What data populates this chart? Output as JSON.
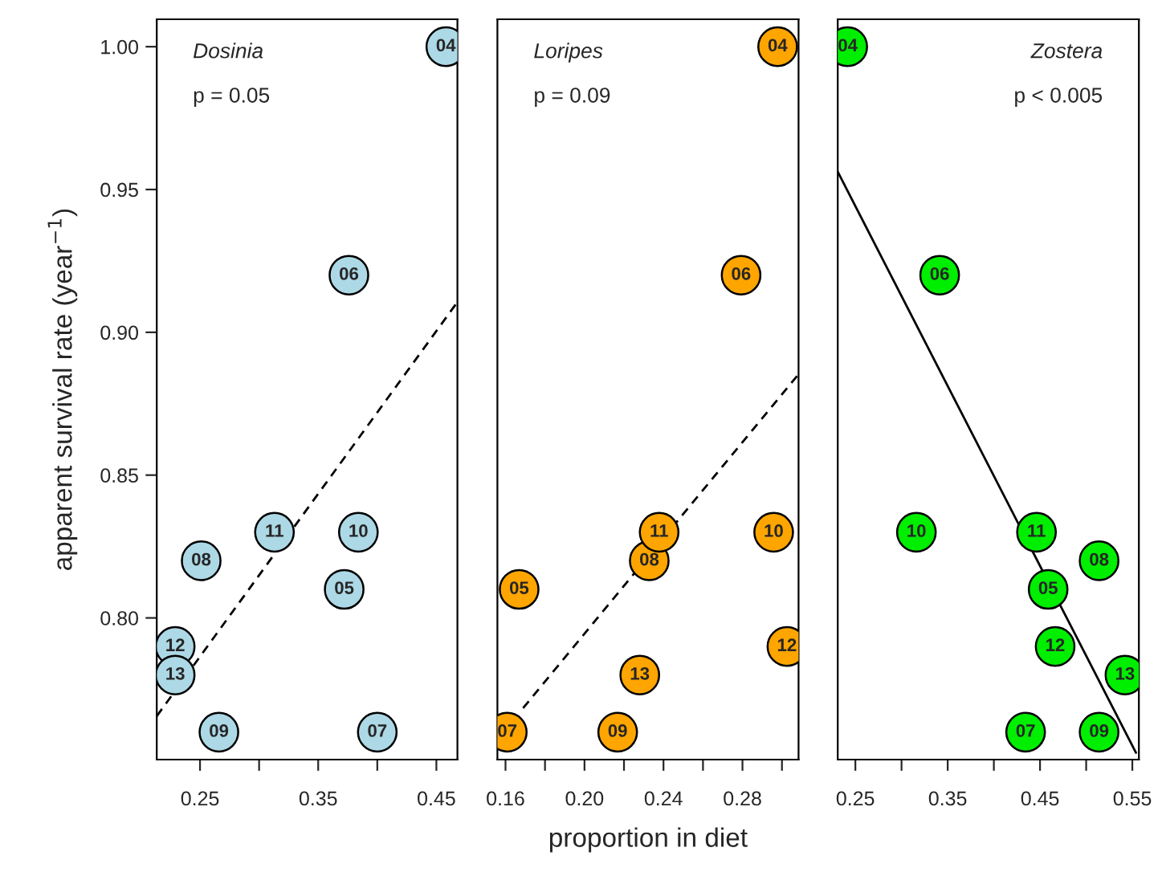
{
  "chart_data": [
    {
      "type": "scatter",
      "ylabel": "apparent survival rate (year$^{−1}$)",
      "marker": "circle",
      "grid": false,
      "annotations": [
        "Dosinia",
        "p = 0.05",
        {
          "text": "04",
          "x": 0.458,
          "y": 1.0
        },
        {
          "text": "05",
          "x": 0.372,
          "y": 0.81
        },
        {
          "text": "06",
          "x": 0.376,
          "y": 0.92
        },
        {
          "text": "07",
          "x": 0.4,
          "y": 0.76
        },
        {
          "text": "08",
          "x": 0.251,
          "y": 0.82
        },
        {
          "text": "09",
          "x": 0.266,
          "y": 0.76
        },
        {
          "text": "10",
          "x": 0.384,
          "y": 0.83
        },
        {
          "text": "11",
          "x": 0.313,
          "y": 0.83
        },
        {
          "text": "12",
          "x": 0.229,
          "y": 0.79
        },
        {
          "text": "13",
          "x": 0.229,
          "y": 0.78
        }
      ],
      "xlim": [
        0.2134,
        0.4678
      ],
      "xticks": [
        0.25,
        {
          "value": 0.3,
          "label": null
        },
        0.35,
        {
          "value": 0.4,
          "label": null
        },
        0.45
      ],
      "ylim": [
        0.7504,
        1.0096
      ],
      "yticks": [
        {
          "value": 0.8,
          "label": "0.80"
        },
        {
          "value": 0.85,
          "label": "0.85"
        },
        {
          "value": 0.9,
          "label": "0.90"
        },
        {
          "value": 0.95,
          "label": "0.95"
        },
        {
          "value": 1.0,
          "label": "1.00"
        }
      ],
      "series": [
        {
          "type": "scatter",
          "color": "#add8e6",
          "x": [
            0.458,
            0.372,
            0.376,
            0.4,
            0.251,
            0.266,
            0.384,
            0.313,
            0.229,
            0.229
          ],
          "values": [
            1.0,
            0.81,
            0.92,
            0.76,
            0.82,
            0.76,
            0.83,
            0.83,
            0.79,
            0.78
          ]
        },
        {
          "type": "line",
          "color": "#000000",
          "line_style": "dashed",
          "marker": "none",
          "x": [
            0.2134,
            0.4678
          ],
          "values": [
            0.7656,
            0.9106
          ]
        }
      ]
    },
    {
      "type": "scatter",
      "xlabel": "proportion in diet",
      "marker": "circle",
      "grid": false,
      "tick_labels": "x",
      "annotations": [
        "Loripes",
        "p = 0.09",
        {
          "text": "04",
          "x": 0.2978,
          "y": 1.0
        },
        {
          "text": "05",
          "x": 0.1669,
          "y": 0.81
        },
        {
          "text": "06",
          "x": 0.2793,
          "y": 0.92
        },
        {
          "text": "07",
          "x": 0.1609,
          "y": 0.76
        },
        {
          "text": "08",
          "x": 0.2328,
          "y": 0.82
        },
        {
          "text": "09",
          "x": 0.2168,
          "y": 0.76
        },
        {
          "text": "10",
          "x": 0.2958,
          "y": 0.83
        },
        {
          "text": "11",
          "x": 0.2378,
          "y": 0.83
        },
        {
          "text": "12",
          "x": 0.3025,
          "y": 0.79
        },
        {
          "text": "13",
          "x": 0.228,
          "y": 0.78
        }
      ],
      "xlim": [
        0.1559,
        0.3084
      ],
      "xticks": [
        {
          "value": 0.16,
          "label": "0.16"
        },
        {
          "value": 0.18,
          "label": null
        },
        {
          "value": 0.2,
          "label": "0.20"
        },
        {
          "value": 0.22,
          "label": null
        },
        {
          "value": 0.24,
          "label": "0.24"
        },
        {
          "value": 0.26,
          "label": null
        },
        {
          "value": 0.28,
          "label": "0.28"
        },
        {
          "value": 0.3,
          "label": null
        }
      ],
      "ylim": [
        0.7504,
        1.0096
      ],
      "series": [
        {
          "type": "scatter",
          "color": "#ffa500",
          "x": [
            0.2978,
            0.1669,
            0.2793,
            0.1609,
            0.2328,
            0.2168,
            0.2958,
            0.2378,
            0.3025,
            0.228
          ],
          "values": [
            1.0,
            0.81,
            0.92,
            0.76,
            0.82,
            0.76,
            0.83,
            0.83,
            0.79,
            0.78
          ]
        },
        {
          "type": "line",
          "color": "#000000",
          "line_style": "dashed",
          "marker": "none",
          "x": [
            0.1689,
            0.3084
          ],
          "values": [
            0.7684,
            0.8853
          ]
        }
      ]
    },
    {
      "type": "scatter",
      "marker": "circle",
      "grid": false,
      "tick_labels": "x",
      "annotations": [
        "Zostera",
        "p < 0.005",
        {
          "text": "04",
          "x": 0.2417,
          "y": 1.0
        },
        {
          "text": "05",
          "x": 0.4588,
          "y": 0.81
        },
        {
          "text": "06",
          "x": 0.3413,
          "y": 0.92
        },
        {
          "text": "07",
          "x": 0.4344,
          "y": 0.76
        },
        {
          "text": "08",
          "x": 0.514,
          "y": 0.82
        },
        {
          "text": "09",
          "x": 0.514,
          "y": 0.76
        },
        {
          "text": "10",
          "x": 0.3161,
          "y": 0.83
        },
        {
          "text": "11",
          "x": 0.4462,
          "y": 0.83
        },
        {
          "text": "12",
          "x": 0.4664,
          "y": 0.79
        },
        {
          "text": "13",
          "x": 0.542,
          "y": 0.78
        }
      ],
      "xlim": [
        0.2309,
        0.5571
      ],
      "xticks": [
        0.25,
        {
          "value": 0.3,
          "label": null
        },
        0.35,
        {
          "value": 0.4,
          "label": null
        },
        0.45,
        {
          "value": 0.5,
          "label": null
        },
        0.55
      ],
      "ylim": [
        0.7504,
        1.0096
      ],
      "series": [
        {
          "type": "scatter",
          "color": "#00ee00",
          "x": [
            0.2417,
            0.4588,
            0.3413,
            0.4344,
            0.514,
            0.514,
            0.3161,
            0.4462,
            0.4664,
            0.542
          ],
          "values": [
            1.0,
            0.81,
            0.92,
            0.76,
            0.82,
            0.76,
            0.83,
            0.83,
            0.79,
            0.78
          ]
        },
        {
          "type": "line",
          "color": "#000000",
          "line_style": "solid",
          "marker": "none",
          "x": [
            0.2309,
            0.5539
          ],
          "values": [
            0.9562,
            0.7528
          ]
        }
      ]
    }
  ]
}
